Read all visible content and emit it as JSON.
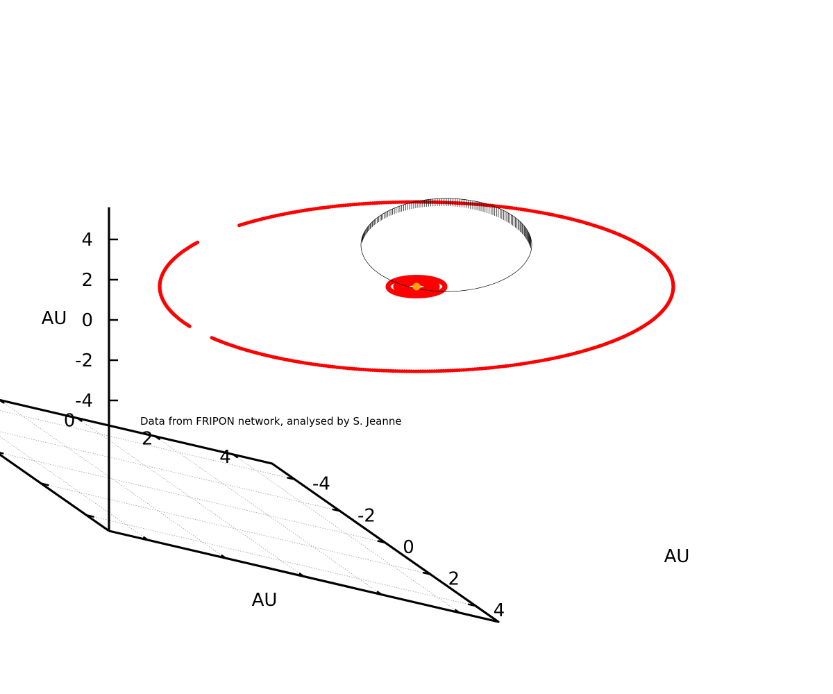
{
  "chart_data": {
    "type": "3d-orbit-plot",
    "annotation": "Data from FRIPON network, analysed by S. Jeanne",
    "axes": {
      "x": {
        "label": "AU",
        "range": [
          -5,
          5
        ],
        "ticks": [
          -4,
          -2,
          0,
          2,
          4
        ]
      },
      "y": {
        "label": "AU",
        "range": [
          -5,
          5
        ],
        "ticks": [
          -4,
          -2,
          0,
          2,
          4
        ]
      },
      "z": {
        "label": "AU",
        "range": [
          -5,
          5
        ],
        "ticks": [
          -4,
          -2,
          0,
          2,
          4
        ]
      }
    },
    "grid": true,
    "sun": {
      "x": 0,
      "y": 0,
      "z": 0,
      "color": "#ffa500"
    },
    "orbits": [
      {
        "kind": "planet",
        "semi_major_axis_au": 0.39,
        "color": "#ff0000"
      },
      {
        "kind": "planet",
        "semi_major_axis_au": 0.72,
        "color": "#ff0000"
      },
      {
        "kind": "planet",
        "semi_major_axis_au": 1.0,
        "color": "#ff0000"
      },
      {
        "kind": "planet",
        "semi_major_axis_au": 1.52,
        "color": "#ff0000"
      },
      {
        "kind": "planet",
        "semi_major_axis_au": 5.2,
        "color": "#ff0000"
      },
      {
        "kind": "meteoroid",
        "semi_major_axis_au": 2.9,
        "eccentricity": 0.66,
        "drop_lines": true,
        "color": "#000000"
      }
    ]
  }
}
